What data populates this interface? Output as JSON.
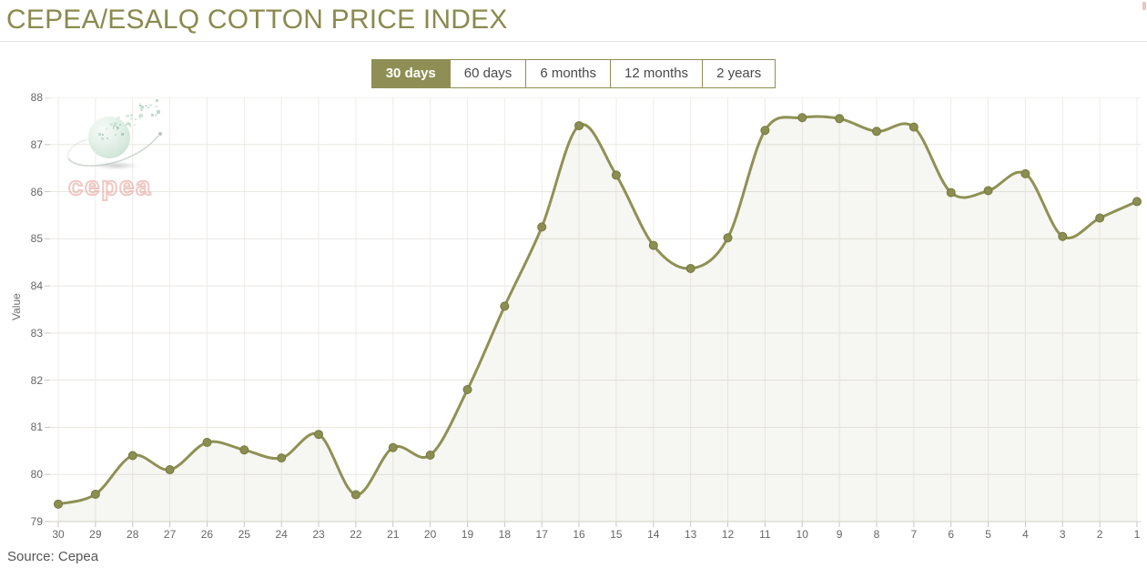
{
  "header": {
    "title": "CEPEA/ESALQ COTTON PRICE INDEX"
  },
  "range_selector": {
    "buttons": [
      {
        "label": "30 days",
        "selected": true
      },
      {
        "label": "60 days",
        "selected": false
      },
      {
        "label": "6 months",
        "selected": false
      },
      {
        "label": "12 months",
        "selected": false
      },
      {
        "label": "2 years",
        "selected": false
      }
    ]
  },
  "chart_data": {
    "type": "area",
    "title": "CEPEA/ESALQ COTTON PRICE INDEX",
    "xlabel": "",
    "ylabel": "Value",
    "x": [
      30,
      29,
      28,
      27,
      26,
      25,
      24,
      23,
      22,
      21,
      20,
      19,
      18,
      17,
      16,
      15,
      14,
      13,
      12,
      11,
      10,
      9,
      8,
      7,
      6,
      5,
      4,
      3,
      2,
      1
    ],
    "values": [
      79.37,
      79.58,
      80.4,
      80.1,
      80.68,
      80.52,
      80.35,
      80.85,
      79.57,
      80.57,
      80.41,
      81.8,
      83.57,
      85.25,
      87.4,
      86.35,
      84.86,
      84.37,
      85.02,
      87.3,
      87.57,
      87.55,
      87.28,
      87.37,
      85.98,
      86.02,
      86.38,
      85.05,
      85.44,
      85.79
    ],
    "ylim": [
      79,
      88
    ],
    "ytick_step": 1,
    "grid": true,
    "legend": false
  },
  "watermark": {
    "text": "cepea"
  },
  "footer": {
    "source": "Source: Cepea"
  },
  "colors": {
    "title": "#8a8a4f",
    "accent": "#8f8f55",
    "line": "#8e9154",
    "marker": "#8a8e50",
    "marker_stroke": "#75793f",
    "fill": "rgba(142,146,85,0.08)",
    "grid_horizontal": "#eae7e2",
    "grid_vertical": "#efece8",
    "axis_line": "#d5d2cd",
    "tick": "#c8c5c0",
    "axis_text": "#666666",
    "button_text": "#4a4a4a",
    "source_text": "#555555"
  }
}
